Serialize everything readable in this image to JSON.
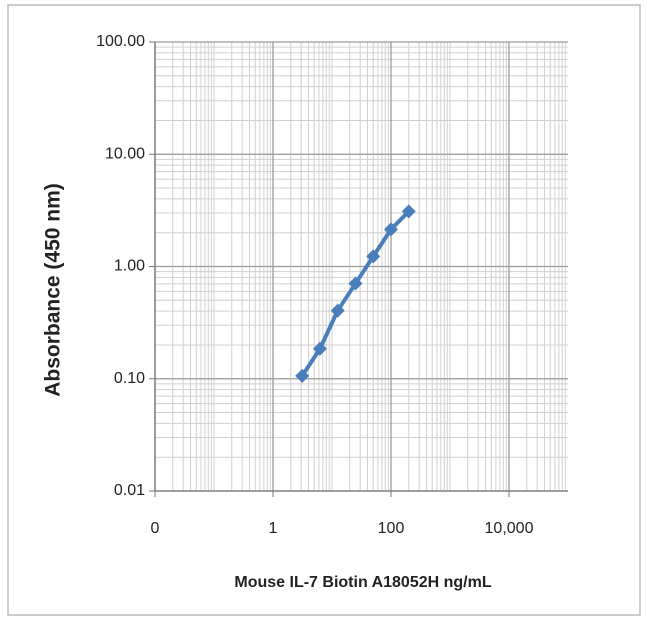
{
  "chart_data": {
    "type": "line",
    "x_label": "Mouse IL-7 Biotin A18052H ng/mL",
    "y_label": "Absorbance (450 nm)",
    "x": [
      3.125,
      6.25,
      12.5,
      25,
      50,
      100,
      200
    ],
    "values": [
      0.106,
      0.185,
      0.405,
      0.705,
      1.23,
      2.14,
      3.1
    ],
    "color": "#4a7ebb",
    "xscale": "log",
    "yscale": "log",
    "xlim": [
      0.01,
      100000
    ],
    "xticks": [
      {
        "value": 0.01,
        "label": "0"
      },
      1,
      100,
      {
        "value": 10000,
        "label": "10,000"
      }
    ],
    "ylim": [
      0.01,
      100
    ],
    "yticks": [
      {
        "value": 0.01,
        "label": "0.01"
      },
      {
        "value": 0.1,
        "label": "0.10"
      },
      {
        "value": 1,
        "label": "1.00"
      },
      {
        "value": 10,
        "label": "10.00"
      },
      {
        "value": 100,
        "label": "100.00"
      }
    ],
    "grid": true,
    "minor_grid": true
  }
}
